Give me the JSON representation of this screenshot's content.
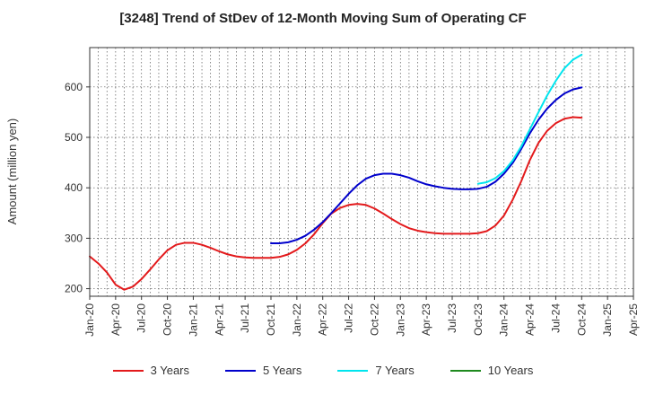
{
  "chart_data": {
    "type": "line",
    "title": "[3248]  Trend of StDev of 12-Month Moving Sum of Operating CF",
    "ylabel": "Amount (million yen)",
    "xlabel": "",
    "ylim": [
      185,
      678
    ],
    "yticks": [
      200,
      300,
      400,
      500,
      600
    ],
    "x_start": "2020-01",
    "x_end": "2025-04",
    "xticks": [
      "Jan-20",
      "Apr-20",
      "Jul-20",
      "Oct-20",
      "Jan-21",
      "Apr-21",
      "Jul-21",
      "Oct-21",
      "Jan-22",
      "Apr-22",
      "Jul-22",
      "Oct-22",
      "Jan-23",
      "Apr-23",
      "Jul-23",
      "Oct-23",
      "Jan-24",
      "Apr-24",
      "Jul-24",
      "Oct-24",
      "Jan-25",
      "Apr-25"
    ],
    "grid": true,
    "legend_position": "bottom",
    "series": [
      {
        "name": "3 Years",
        "color": "#e31a1c",
        "points": [
          [
            "2020-01",
            264
          ],
          [
            "2020-02",
            250
          ],
          [
            "2020-03",
            232
          ],
          [
            "2020-04",
            208
          ],
          [
            "2020-05",
            198
          ],
          [
            "2020-06",
            204
          ],
          [
            "2020-07",
            219
          ],
          [
            "2020-08",
            238
          ],
          [
            "2020-09",
            258
          ],
          [
            "2020-10",
            276
          ],
          [
            "2020-11",
            287
          ],
          [
            "2020-12",
            291
          ],
          [
            "2021-01",
            291
          ],
          [
            "2021-02",
            287
          ],
          [
            "2021-03",
            281
          ],
          [
            "2021-04",
            274
          ],
          [
            "2021-05",
            268
          ],
          [
            "2021-06",
            264
          ],
          [
            "2021-07",
            262
          ],
          [
            "2021-08",
            261
          ],
          [
            "2021-09",
            261
          ],
          [
            "2021-10",
            261
          ],
          [
            "2021-11",
            263
          ],
          [
            "2021-12",
            268
          ],
          [
            "2022-01",
            277
          ],
          [
            "2022-02",
            290
          ],
          [
            "2022-03",
            308
          ],
          [
            "2022-04",
            330
          ],
          [
            "2022-05",
            349
          ],
          [
            "2022-06",
            360
          ],
          [
            "2022-07",
            366
          ],
          [
            "2022-08",
            368
          ],
          [
            "2022-09",
            366
          ],
          [
            "2022-10",
            359
          ],
          [
            "2022-11",
            349
          ],
          [
            "2022-12",
            338
          ],
          [
            "2023-01",
            328
          ],
          [
            "2023-02",
            320
          ],
          [
            "2023-03",
            315
          ],
          [
            "2023-04",
            312
          ],
          [
            "2023-05",
            310
          ],
          [
            "2023-06",
            309
          ],
          [
            "2023-07",
            309
          ],
          [
            "2023-08",
            309
          ],
          [
            "2023-09",
            309
          ],
          [
            "2023-10",
            310
          ],
          [
            "2023-11",
            314
          ],
          [
            "2023-12",
            325
          ],
          [
            "2024-01",
            345
          ],
          [
            "2024-02",
            376
          ],
          [
            "2024-03",
            413
          ],
          [
            "2024-04",
            455
          ],
          [
            "2024-05",
            489
          ],
          [
            "2024-06",
            513
          ],
          [
            "2024-07",
            528
          ],
          [
            "2024-08",
            537
          ],
          [
            "2024-09",
            540
          ],
          [
            "2024-10",
            539
          ]
        ]
      },
      {
        "name": "5 Years",
        "color": "#0000cc",
        "points": [
          [
            "2021-10",
            290
          ],
          [
            "2021-11",
            290
          ],
          [
            "2021-12",
            292
          ],
          [
            "2022-01",
            297
          ],
          [
            "2022-02",
            305
          ],
          [
            "2022-03",
            317
          ],
          [
            "2022-04",
            332
          ],
          [
            "2022-05",
            350
          ],
          [
            "2022-06",
            369
          ],
          [
            "2022-07",
            388
          ],
          [
            "2022-08",
            405
          ],
          [
            "2022-09",
            418
          ],
          [
            "2022-10",
            425
          ],
          [
            "2022-11",
            428
          ],
          [
            "2022-12",
            428
          ],
          [
            "2023-01",
            425
          ],
          [
            "2023-02",
            420
          ],
          [
            "2023-03",
            413
          ],
          [
            "2023-04",
            407
          ],
          [
            "2023-05",
            403
          ],
          [
            "2023-06",
            400
          ],
          [
            "2023-07",
            398
          ],
          [
            "2023-08",
            397
          ],
          [
            "2023-09",
            397
          ],
          [
            "2023-10",
            398
          ],
          [
            "2023-11",
            402
          ],
          [
            "2023-12",
            412
          ],
          [
            "2024-01",
            428
          ],
          [
            "2024-02",
            449
          ],
          [
            "2024-03",
            477
          ],
          [
            "2024-04",
            508
          ],
          [
            "2024-05",
            535
          ],
          [
            "2024-06",
            557
          ],
          [
            "2024-07",
            574
          ],
          [
            "2024-08",
            587
          ],
          [
            "2024-09",
            595
          ],
          [
            "2024-10",
            599
          ]
        ]
      },
      {
        "name": "7 Years",
        "color": "#00e5ee",
        "points": [
          [
            "2023-10",
            408
          ],
          [
            "2023-11",
            411
          ],
          [
            "2023-12",
            419
          ],
          [
            "2024-01",
            433
          ],
          [
            "2024-02",
            454
          ],
          [
            "2024-03",
            482
          ],
          [
            "2024-04",
            516
          ],
          [
            "2024-05",
            550
          ],
          [
            "2024-06",
            583
          ],
          [
            "2024-07",
            612
          ],
          [
            "2024-08",
            637
          ],
          [
            "2024-09",
            654
          ],
          [
            "2024-10",
            664
          ]
        ]
      },
      {
        "name": "10 Years",
        "color": "#1f8a1f",
        "points": []
      }
    ]
  }
}
